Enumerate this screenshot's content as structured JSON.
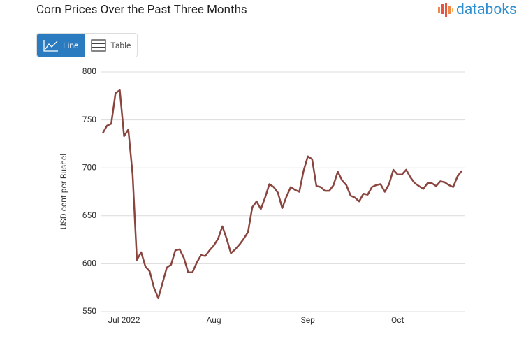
{
  "chart_data": {
    "type": "line",
    "title": "Corn Prices Over the Past Three Months",
    "y_label": "USD cent per Bushel",
    "categories": [
      null,
      null,
      null,
      null,
      null,
      "Jul 2022",
      null,
      null,
      null,
      null,
      null,
      null,
      null,
      null,
      null,
      null,
      null,
      null,
      null,
      null,
      null,
      null,
      null,
      null,
      null,
      null,
      "Aug",
      null,
      null,
      null,
      null,
      null,
      null,
      null,
      null,
      null,
      null,
      null,
      null,
      null,
      null,
      null,
      null,
      null,
      null,
      null,
      null,
      null,
      "Sep",
      null,
      null,
      null,
      null,
      null,
      null,
      null,
      null,
      null,
      null,
      null,
      null,
      null,
      null,
      null,
      null,
      null,
      null,
      null,
      null,
      "Oct",
      null,
      null,
      null,
      null,
      null,
      null,
      null,
      null,
      null,
      null,
      null,
      null,
      null,
      null,
      null
    ],
    "values": [
      736,
      744,
      746,
      778,
      781,
      733,
      740,
      693,
      604,
      612,
      597,
      592,
      575,
      564,
      580,
      596,
      599,
      614,
      615,
      606,
      591,
      591,
      601,
      609,
      608,
      614,
      619,
      626,
      639,
      626,
      611,
      615,
      620,
      626,
      633,
      659,
      665,
      657,
      669,
      683,
      680,
      674,
      658,
      670,
      680,
      677,
      675,
      697,
      712,
      709,
      681,
      680,
      676,
      676,
      682,
      696,
      687,
      682,
      671,
      669,
      665,
      673,
      672,
      680,
      682,
      683,
      675,
      683,
      698,
      693,
      693,
      698,
      690,
      684,
      681,
      678,
      684,
      684,
      681,
      686,
      685,
      682,
      680,
      691,
      697
    ],
    "color": "#8a453f",
    "ylim": [
      550,
      800
    ],
    "yticks": [
      550,
      600,
      650,
      700,
      750,
      800
    ],
    "grid": true
  },
  "ui": {
    "logo": "databoks",
    "buttons": [
      "Line",
      "Table"
    ]
  }
}
